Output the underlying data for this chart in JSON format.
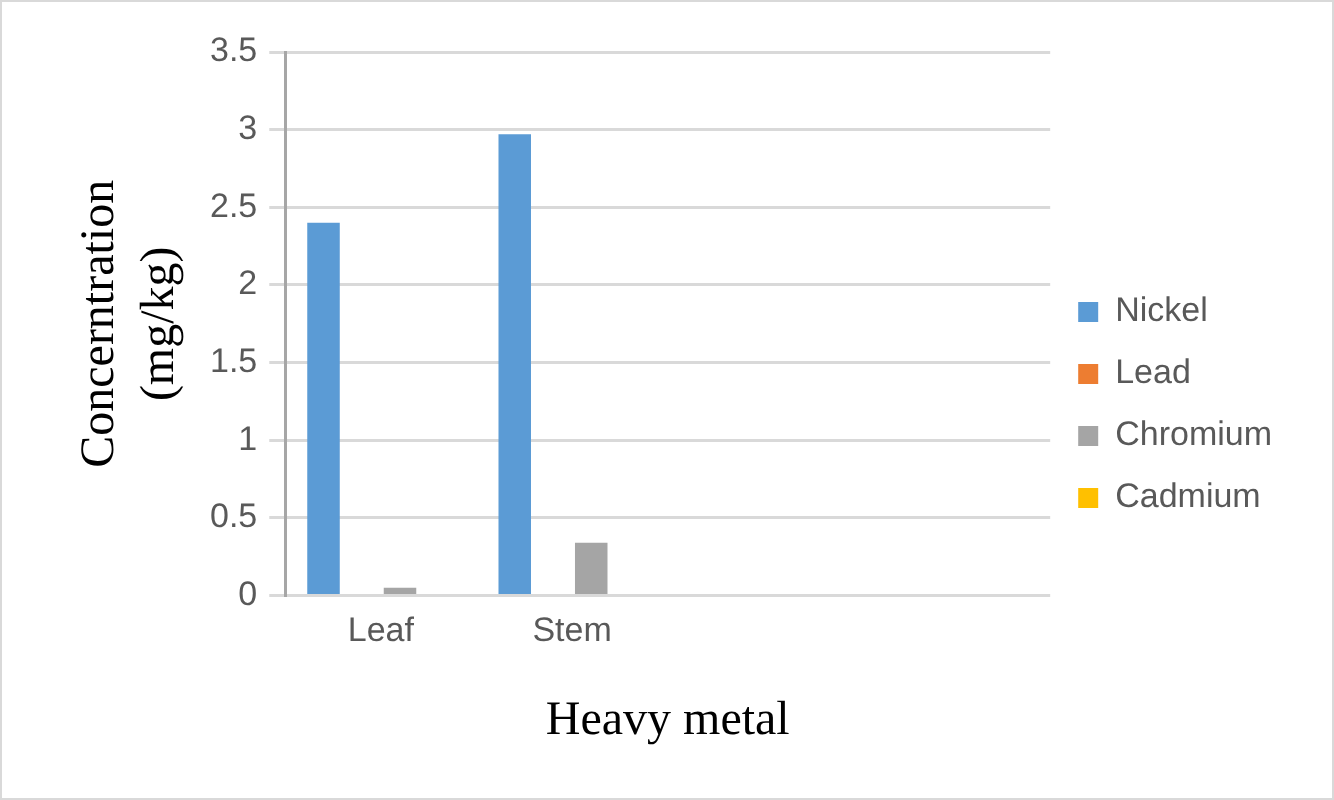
{
  "chart_data": {
    "type": "bar",
    "xlabel": "Heavy metal",
    "ylabel": "Concerntration (mg/kg)",
    "categories": [
      "Leaf",
      "Stem",
      null,
      null
    ],
    "series": [
      {
        "name": "Nickel",
        "color": "#5b9bd5",
        "values": [
          2.4,
          2.97,
          null,
          null
        ]
      },
      {
        "name": "Lead",
        "color": "#ed7d31",
        "values": [
          0,
          0,
          null,
          null
        ]
      },
      {
        "name": "Chromium",
        "color": "#a5a5a5",
        "values": [
          0.05,
          0.34,
          null,
          null
        ]
      },
      {
        "name": "Cadmium",
        "color": "#ffc000",
        "values": [
          0,
          0,
          null,
          null
        ]
      }
    ],
    "ylim": [
      0,
      3.5
    ],
    "yticks": [
      0,
      0.5,
      1,
      1.5,
      2,
      2.5,
      3,
      3.5
    ],
    "grid": "y",
    "legend": "right"
  }
}
